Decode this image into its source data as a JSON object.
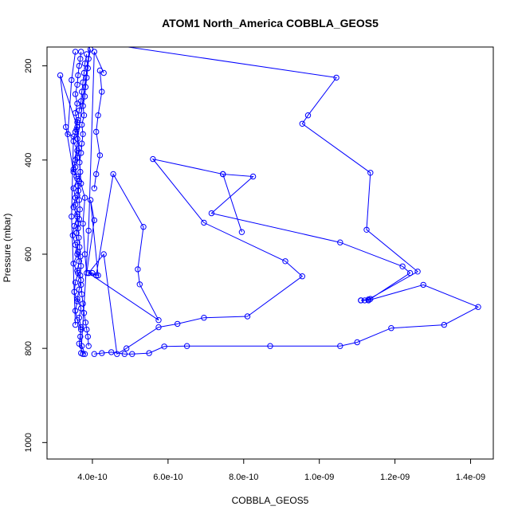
{
  "chart_data": {
    "type": "line",
    "title": "ATOM1 North_America COBBLA_GEOS5",
    "xlabel": "COBBLA_GEOS5",
    "ylabel": "Pressure (mbar)",
    "xlim": [
      2.8e-10,
      1.46e-09
    ],
    "ylim": [
      1035,
      160
    ],
    "y_reversed": true,
    "grid": false,
    "x_ticks": [
      {
        "value": 4e-10,
        "label": "4.0e-10"
      },
      {
        "value": 6e-10,
        "label": "6.0e-10"
      },
      {
        "value": 8e-10,
        "label": "8.0e-10"
      },
      {
        "value": 1e-09,
        "label": "1.0e-09"
      },
      {
        "value": 1.2e-09,
        "label": "1.2e-09"
      },
      {
        "value": 1.4e-09,
        "label": "1.4e-09"
      }
    ],
    "y_ticks": [
      {
        "value": 200,
        "label": "200"
      },
      {
        "value": 400,
        "label": "400"
      },
      {
        "value": 600,
        "label": "600"
      },
      {
        "value": 800,
        "label": "800"
      },
      {
        "value": 1000,
        "label": "1000"
      }
    ],
    "color": "#0000ff",
    "series": [
      {
        "points": [
          [
            4.05e-10,
            812
          ],
          [
            4.25e-10,
            810
          ],
          [
            4.5e-10,
            808
          ],
          [
            4.85e-10,
            812
          ],
          [
            5.05e-10,
            812
          ],
          [
            5.5e-10,
            810
          ],
          [
            5.9e-10,
            796
          ],
          [
            6.5e-10,
            795
          ],
          [
            8.7e-10,
            795
          ],
          [
            1.055e-09,
            795
          ],
          [
            1.1e-09,
            787
          ],
          [
            1.19e-09,
            757
          ],
          [
            1.33e-09,
            750
          ],
          [
            1.42e-09,
            712
          ],
          [
            1.275e-09,
            665
          ],
          [
            1.13e-09,
            698
          ],
          [
            1.12e-09,
            698
          ],
          [
            1.11e-09,
            698
          ],
          [
            1.135e-09,
            695
          ],
          [
            1.24e-09,
            640
          ],
          [
            1.22e-09,
            626
          ],
          [
            1.055e-09,
            575
          ],
          [
            7.15e-10,
            513
          ],
          [
            8.25e-10,
            435
          ],
          [
            7.45e-10,
            430
          ],
          [
            7.95e-10,
            553
          ],
          [
            7.45e-10,
            430
          ],
          [
            5.6e-10,
            398
          ],
          [
            6.95e-10,
            533
          ],
          [
            9.1e-10,
            615
          ],
          [
            9.55e-10,
            647
          ],
          [
            8.1e-10,
            732
          ],
          [
            6.95e-10,
            735
          ],
          [
            6.25e-10,
            748
          ],
          [
            5.75e-10,
            755
          ],
          [
            4.9e-10,
            800
          ],
          [
            4.65e-10,
            812
          ],
          [
            4.3e-10,
            600
          ],
          [
            3.9e-10,
            640
          ],
          [
            4.1e-10,
            645
          ],
          [
            4.55e-10,
            430
          ],
          [
            5.35e-10,
            542
          ],
          [
            5.2e-10,
            632
          ],
          [
            5.25e-10,
            664
          ],
          [
            5.75e-10,
            740
          ],
          [
            3.9e-10,
            640
          ],
          [
            4e-10,
            640
          ],
          [
            4.15e-10,
            645
          ],
          [
            3.95e-10,
            485
          ],
          [
            4.05e-10,
            528
          ],
          [
            3.85e-10,
            640
          ],
          [
            3.8e-10,
            600
          ],
          [
            3.75e-10,
            535
          ],
          [
            3.8e-10,
            480
          ],
          [
            3.7e-10,
            450
          ],
          [
            3.6e-10,
            330
          ],
          [
            3.15e-10,
            220
          ],
          [
            3.3e-10,
            330
          ],
          [
            3.5e-10,
            425
          ],
          [
            3.95e-10,
            148
          ],
          [
            4.1e-10,
            150
          ],
          [
            1.045e-09,
            225
          ],
          [
            9.7e-10,
            305
          ],
          [
            9.55e-10,
            323
          ],
          [
            1.135e-09,
            427
          ],
          [
            1.125e-09,
            548
          ],
          [
            1.26e-09,
            637
          ],
          [
            1.13e-09,
            696
          ],
          [
            1.11e-09,
            698
          ]
        ]
      },
      {
        "points": [
          [
            3.75e-10,
            812
          ],
          [
            3.65e-10,
            790
          ],
          [
            3.7e-10,
            760
          ],
          [
            3.6e-10,
            740
          ],
          [
            3.55e-10,
            720
          ],
          [
            3.6e-10,
            700
          ],
          [
            3.52e-10,
            680
          ],
          [
            3.55e-10,
            660
          ],
          [
            3.62e-10,
            640
          ],
          [
            3.5e-10,
            620
          ],
          [
            3.6e-10,
            600
          ],
          [
            3.55e-10,
            580
          ],
          [
            3.48e-10,
            560
          ],
          [
            3.52e-10,
            540
          ],
          [
            3.6e-10,
            520
          ],
          [
            3.5e-10,
            500
          ],
          [
            3.55e-10,
            480
          ],
          [
            3.5e-10,
            460
          ],
          [
            3.6e-10,
            440
          ],
          [
            3.5e-10,
            420
          ],
          [
            3.55e-10,
            400
          ],
          [
            3.6e-10,
            380
          ],
          [
            3.5e-10,
            360
          ],
          [
            3.55e-10,
            340
          ],
          [
            3.6e-10,
            320
          ],
          [
            3.55e-10,
            300
          ],
          [
            3.6e-10,
            280
          ],
          [
            3.55e-10,
            260
          ],
          [
            3.6e-10,
            240
          ],
          [
            3.62e-10,
            220
          ],
          [
            3.65e-10,
            200
          ],
          [
            3.68e-10,
            185
          ],
          [
            3.7e-10,
            170
          ]
        ]
      },
      {
        "points": [
          [
            3.8e-10,
            812
          ],
          [
            3.72e-10,
            795
          ],
          [
            3.68e-10,
            775
          ],
          [
            3.7e-10,
            755
          ],
          [
            3.65e-10,
            735
          ],
          [
            3.7e-10,
            715
          ],
          [
            3.6e-10,
            695
          ],
          [
            3.65e-10,
            675
          ],
          [
            3.7e-10,
            655
          ],
          [
            3.6e-10,
            635
          ],
          [
            3.65e-10,
            615
          ],
          [
            3.62e-10,
            595
          ],
          [
            3.6e-10,
            575
          ],
          [
            3.58e-10,
            555
          ],
          [
            3.62e-10,
            535
          ],
          [
            3.6e-10,
            515
          ],
          [
            3.55e-10,
            495
          ],
          [
            3.6e-10,
            475
          ],
          [
            3.62e-10,
            455
          ],
          [
            3.58e-10,
            435
          ],
          [
            3.55e-10,
            415
          ],
          [
            3.6e-10,
            395
          ],
          [
            3.65e-10,
            375
          ],
          [
            3.6e-10,
            355
          ],
          [
            3.58e-10,
            335
          ],
          [
            3.62e-10,
            315
          ],
          [
            3.65e-10,
            295
          ],
          [
            3.7e-10,
            275
          ],
          [
            3.72e-10,
            255
          ],
          [
            3.75e-10,
            235
          ],
          [
            3.78e-10,
            215
          ],
          [
            3.8e-10,
            195
          ],
          [
            3.85e-10,
            175
          ]
        ]
      },
      {
        "points": [
          [
            3.9e-10,
            795
          ],
          [
            3.88e-10,
            775
          ],
          [
            3.85e-10,
            760
          ],
          [
            3.82e-10,
            745
          ],
          [
            3.78e-10,
            725
          ],
          [
            3.75e-10,
            705
          ],
          [
            3.72e-10,
            685
          ],
          [
            3.7e-10,
            665
          ],
          [
            3.68e-10,
            645
          ],
          [
            3.7e-10,
            625
          ],
          [
            3.68e-10,
            605
          ],
          [
            3.66e-10,
            585
          ],
          [
            3.64e-10,
            565
          ],
          [
            3.62e-10,
            545
          ],
          [
            3.65e-10,
            525
          ],
          [
            3.67e-10,
            505
          ],
          [
            3.65e-10,
            485
          ],
          [
            3.63e-10,
            465
          ],
          [
            3.65e-10,
            445
          ],
          [
            3.68e-10,
            425
          ],
          [
            3.66e-10,
            405
          ],
          [
            3.7e-10,
            385
          ],
          [
            3.72e-10,
            365
          ],
          [
            3.75e-10,
            345
          ],
          [
            3.72e-10,
            325
          ],
          [
            3.78e-10,
            305
          ],
          [
            3.75e-10,
            285
          ],
          [
            3.8e-10,
            265
          ],
          [
            3.82e-10,
            245
          ],
          [
            3.85e-10,
            225
          ],
          [
            3.88e-10,
            205
          ],
          [
            3.9e-10,
            185
          ],
          [
            3.95e-10,
            165
          ]
        ]
      },
      {
        "points": [
          [
            4.2e-10,
            210
          ],
          [
            4.25e-10,
            255
          ],
          [
            4.15e-10,
            305
          ],
          [
            4.1e-10,
            340
          ],
          [
            4.2e-10,
            390
          ],
          [
            4.1e-10,
            430
          ],
          [
            4.05e-10,
            460
          ]
        ]
      },
      {
        "points": [
          [
            3.7e-10,
            810
          ],
          [
            3.9e-10,
            550
          ],
          [
            4.05e-10,
            170
          ],
          [
            4.3e-10,
            215
          ]
        ]
      },
      {
        "points": [
          [
            3.55e-10,
            750
          ],
          [
            3.45e-10,
            520
          ],
          [
            3.5e-10,
            350
          ],
          [
            3.35e-10,
            345
          ],
          [
            3.45e-10,
            230
          ],
          [
            3.55e-10,
            170
          ]
        ]
      }
    ]
  }
}
